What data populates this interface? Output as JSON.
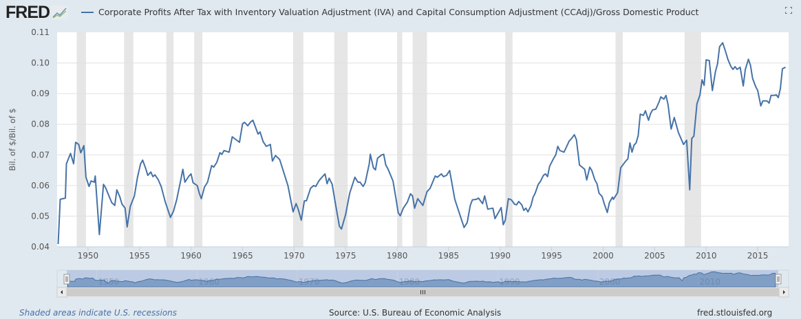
{
  "header": {
    "logo": "FRED",
    "logo_icon": "line-chart-icon",
    "fullscreen_icon": "fullscreen-icon"
  },
  "chart_data": {
    "type": "line",
    "title": "Corporate Profits After Tax with Inventory Valuation Adjustment (IVA) and Capital Consumption Adjustment (CCAdj)/Gross Domestic Product",
    "ylabel": "Bil. of $/Bil. of $",
    "xlabel": "",
    "ylim": [
      0.04,
      0.11
    ],
    "xlim": [
      1947.0,
      2018.0
    ],
    "yticks": [
      "0.04",
      "0.05",
      "0.06",
      "0.07",
      "0.08",
      "0.09",
      "0.10",
      "0.11"
    ],
    "xticks": [
      "1950",
      "1955",
      "1960",
      "1965",
      "1970",
      "1975",
      "1980",
      "1985",
      "1990",
      "1995",
      "2000",
      "2005",
      "2010",
      "2015"
    ],
    "navigator_labels": [
      "1950",
      "1960",
      "1970",
      "1980",
      "1990",
      "2000",
      "2010"
    ],
    "grid": true,
    "line_color": "#4572a7",
    "recession_color": "#e6e6e6",
    "recessions": [
      [
        1948.9,
        1949.8
      ],
      [
        1953.5,
        1954.4
      ],
      [
        1957.6,
        1958.3
      ],
      [
        1960.3,
        1961.1
      ],
      [
        1969.9,
        1970.9
      ],
      [
        1973.9,
        1975.2
      ],
      [
        1980.0,
        1980.5
      ],
      [
        1981.5,
        1982.9
      ],
      [
        1990.5,
        1991.2
      ],
      [
        2001.2,
        2001.9
      ],
      [
        2007.9,
        2009.5
      ]
    ],
    "series": [
      {
        "points": [
          [
            1947.1,
            0.0409
          ],
          [
            1947.3,
            0.0555
          ],
          [
            1947.8,
            0.0559
          ],
          [
            1947.9,
            0.0671
          ],
          [
            1948.3,
            0.0705
          ],
          [
            1948.6,
            0.0671
          ],
          [
            1948.8,
            0.0741
          ],
          [
            1949.1,
            0.0734
          ],
          [
            1949.3,
            0.0707
          ],
          [
            1949.6,
            0.073
          ],
          [
            1949.8,
            0.0627
          ],
          [
            1950.1,
            0.0597
          ],
          [
            1950.3,
            0.0615
          ],
          [
            1950.6,
            0.0611
          ],
          [
            1950.7,
            0.0631
          ],
          [
            1951.1,
            0.044
          ],
          [
            1951.5,
            0.0604
          ],
          [
            1951.7,
            0.0593
          ],
          [
            1952.3,
            0.0544
          ],
          [
            1952.6,
            0.0535
          ],
          [
            1952.8,
            0.0586
          ],
          [
            1953.1,
            0.0562
          ],
          [
            1953.3,
            0.0539
          ],
          [
            1953.6,
            0.0526
          ],
          [
            1953.8,
            0.0465
          ],
          [
            1954.1,
            0.0532
          ],
          [
            1954.5,
            0.0566
          ],
          [
            1954.8,
            0.0627
          ],
          [
            1955.1,
            0.0671
          ],
          [
            1955.3,
            0.0683
          ],
          [
            1955.6,
            0.0655
          ],
          [
            1955.8,
            0.0633
          ],
          [
            1956.1,
            0.0644
          ],
          [
            1956.3,
            0.0629
          ],
          [
            1956.5,
            0.0635
          ],
          [
            1956.8,
            0.062
          ],
          [
            1957.1,
            0.0597
          ],
          [
            1957.5,
            0.0546
          ],
          [
            1958.0,
            0.0496
          ],
          [
            1958.3,
            0.0517
          ],
          [
            1958.6,
            0.0553
          ],
          [
            1959.0,
            0.0618
          ],
          [
            1959.2,
            0.0653
          ],
          [
            1959.4,
            0.0611
          ],
          [
            1959.8,
            0.0631
          ],
          [
            1960.0,
            0.0638
          ],
          [
            1960.2,
            0.0609
          ],
          [
            1960.6,
            0.06
          ],
          [
            1960.8,
            0.0575
          ],
          [
            1961.0,
            0.0557
          ],
          [
            1961.3,
            0.0595
          ],
          [
            1961.6,
            0.0611
          ],
          [
            1962.0,
            0.0665
          ],
          [
            1962.2,
            0.066
          ],
          [
            1962.5,
            0.0676
          ],
          [
            1962.8,
            0.0707
          ],
          [
            1963.0,
            0.0702
          ],
          [
            1963.2,
            0.0714
          ],
          [
            1963.7,
            0.0709
          ],
          [
            1964.0,
            0.0759
          ],
          [
            1964.7,
            0.0741
          ],
          [
            1965.0,
            0.0802
          ],
          [
            1965.2,
            0.0806
          ],
          [
            1965.5,
            0.0795
          ],
          [
            1965.8,
            0.0808
          ],
          [
            1966.0,
            0.0813
          ],
          [
            1966.5,
            0.0768
          ],
          [
            1966.7,
            0.0775
          ],
          [
            1967.0,
            0.0743
          ],
          [
            1967.3,
            0.0728
          ],
          [
            1967.7,
            0.0734
          ],
          [
            1967.9,
            0.068
          ],
          [
            1968.2,
            0.0698
          ],
          [
            1968.6,
            0.0685
          ],
          [
            1969.4,
            0.06
          ],
          [
            1969.9,
            0.0514
          ],
          [
            1970.2,
            0.0541
          ],
          [
            1970.4,
            0.0523
          ],
          [
            1970.7,
            0.0487
          ],
          [
            1971.0,
            0.055
          ],
          [
            1971.2,
            0.055
          ],
          [
            1971.6,
            0.0591
          ],
          [
            1971.9,
            0.06
          ],
          [
            1972.1,
            0.0597
          ],
          [
            1972.4,
            0.0615
          ],
          [
            1972.7,
            0.0627
          ],
          [
            1973.0,
            0.0638
          ],
          [
            1973.2,
            0.0606
          ],
          [
            1973.4,
            0.0624
          ],
          [
            1973.7,
            0.0604
          ],
          [
            1974.0,
            0.0544
          ],
          [
            1974.4,
            0.0467
          ],
          [
            1974.6,
            0.0458
          ],
          [
            1975.0,
            0.0505
          ],
          [
            1975.4,
            0.0575
          ],
          [
            1975.9,
            0.0627
          ],
          [
            1976.2,
            0.0611
          ],
          [
            1976.4,
            0.0611
          ],
          [
            1976.7,
            0.0597
          ],
          [
            1976.9,
            0.0609
          ],
          [
            1977.3,
            0.0671
          ],
          [
            1977.4,
            0.0702
          ],
          [
            1977.7,
            0.0658
          ],
          [
            1977.9,
            0.0651
          ],
          [
            1978.1,
            0.0689
          ],
          [
            1978.5,
            0.07
          ],
          [
            1978.7,
            0.0702
          ],
          [
            1978.9,
            0.0667
          ],
          [
            1979.1,
            0.0655
          ],
          [
            1979.6,
            0.0615
          ],
          [
            1979.9,
            0.0555
          ],
          [
            1980.1,
            0.0512
          ],
          [
            1980.3,
            0.0501
          ],
          [
            1980.6,
            0.0526
          ],
          [
            1981.0,
            0.0546
          ],
          [
            1981.3,
            0.0573
          ],
          [
            1981.5,
            0.0566
          ],
          [
            1981.7,
            0.0526
          ],
          [
            1982.0,
            0.0557
          ],
          [
            1982.5,
            0.0535
          ],
          [
            1982.9,
            0.058
          ],
          [
            1983.2,
            0.0591
          ],
          [
            1983.7,
            0.0631
          ],
          [
            1983.9,
            0.0627
          ],
          [
            1984.3,
            0.0638
          ],
          [
            1984.5,
            0.0629
          ],
          [
            1984.8,
            0.0633
          ],
          [
            1985.1,
            0.0649
          ],
          [
            1985.6,
            0.0555
          ],
          [
            1986.5,
            0.0463
          ],
          [
            1986.8,
            0.0479
          ],
          [
            1987.1,
            0.0535
          ],
          [
            1987.3,
            0.0553
          ],
          [
            1987.7,
            0.0555
          ],
          [
            1987.9,
            0.0559
          ],
          [
            1988.3,
            0.0541
          ],
          [
            1988.5,
            0.0566
          ],
          [
            1988.8,
            0.0523
          ],
          [
            1989.3,
            0.0526
          ],
          [
            1989.5,
            0.0492
          ],
          [
            1990.1,
            0.0528
          ],
          [
            1990.3,
            0.0472
          ],
          [
            1990.5,
            0.0487
          ],
          [
            1990.8,
            0.0557
          ],
          [
            1991.1,
            0.0553
          ],
          [
            1991.4,
            0.0539
          ],
          [
            1991.6,
            0.0537
          ],
          [
            1991.8,
            0.0548
          ],
          [
            1992.1,
            0.0537
          ],
          [
            1992.3,
            0.0519
          ],
          [
            1992.5,
            0.0526
          ],
          [
            1992.7,
            0.0514
          ],
          [
            1993.0,
            0.0535
          ],
          [
            1993.2,
            0.0562
          ],
          [
            1993.4,
            0.0575
          ],
          [
            1993.7,
            0.0604
          ],
          [
            1993.9,
            0.0613
          ],
          [
            1994.2,
            0.0633
          ],
          [
            1994.4,
            0.0638
          ],
          [
            1994.6,
            0.0629
          ],
          [
            1994.8,
            0.0663
          ],
          [
            1995.2,
            0.0689
          ],
          [
            1995.4,
            0.07
          ],
          [
            1995.6,
            0.0728
          ],
          [
            1995.8,
            0.0714
          ],
          [
            1996.2,
            0.0709
          ],
          [
            1996.4,
            0.0723
          ],
          [
            1996.7,
            0.0745
          ],
          [
            1996.9,
            0.0752
          ],
          [
            1997.2,
            0.0766
          ],
          [
            1997.4,
            0.075
          ],
          [
            1997.7,
            0.0667
          ],
          [
            1998.2,
            0.0653
          ],
          [
            1998.4,
            0.0618
          ],
          [
            1998.7,
            0.066
          ],
          [
            1998.9,
            0.0649
          ],
          [
            1999.2,
            0.0618
          ],
          [
            1999.4,
            0.0606
          ],
          [
            1999.6,
            0.0575
          ],
          [
            1999.9,
            0.0564
          ],
          [
            2000.1,
            0.0541
          ],
          [
            2000.4,
            0.0512
          ],
          [
            2000.6,
            0.0544
          ],
          [
            2000.9,
            0.0562
          ],
          [
            2001.0,
            0.0555
          ],
          [
            2001.4,
            0.0577
          ],
          [
            2001.7,
            0.0658
          ],
          [
            2002.2,
            0.068
          ],
          [
            2002.4,
            0.0687
          ],
          [
            2002.6,
            0.0739
          ],
          [
            2002.8,
            0.0709
          ],
          [
            2003.0,
            0.0732
          ],
          [
            2003.2,
            0.0739
          ],
          [
            2003.4,
            0.0763
          ],
          [
            2003.6,
            0.0833
          ],
          [
            2003.9,
            0.0829
          ],
          [
            2004.1,
            0.0844
          ],
          [
            2004.4,
            0.0813
          ],
          [
            2004.6,
            0.0835
          ],
          [
            2004.8,
            0.0847
          ],
          [
            2005.1,
            0.0849
          ],
          [
            2005.4,
            0.0871
          ],
          [
            2005.6,
            0.0889
          ],
          [
            2005.9,
            0.0882
          ],
          [
            2006.1,
            0.0894
          ],
          [
            2006.3,
            0.0864
          ],
          [
            2006.6,
            0.0784
          ],
          [
            2006.9,
            0.0822
          ],
          [
            2007.3,
            0.0773
          ],
          [
            2007.8,
            0.0734
          ],
          [
            2008.1,
            0.0748
          ],
          [
            2008.4,
            0.0586
          ],
          [
            2008.6,
            0.0754
          ],
          [
            2008.8,
            0.0761
          ],
          [
            2009.1,
            0.0867
          ],
          [
            2009.4,
            0.0896
          ],
          [
            2009.6,
            0.0945
          ],
          [
            2009.8,
            0.0927
          ],
          [
            2010.0,
            0.101
          ],
          [
            2010.3,
            0.1008
          ],
          [
            2010.6,
            0.091
          ],
          [
            2010.9,
            0.0972
          ],
          [
            2011.1,
            0.0997
          ],
          [
            2011.3,
            0.1053
          ],
          [
            2011.6,
            0.1066
          ],
          [
            2011.9,
            0.1035
          ],
          [
            2012.1,
            0.1012
          ],
          [
            2012.4,
            0.0988
          ],
          [
            2012.6,
            0.0979
          ],
          [
            2012.8,
            0.0988
          ],
          [
            2013.0,
            0.0979
          ],
          [
            2013.3,
            0.0986
          ],
          [
            2013.6,
            0.0925
          ],
          [
            2013.8,
            0.0979
          ],
          [
            2014.1,
            0.1012
          ],
          [
            2014.3,
            0.0992
          ],
          [
            2014.5,
            0.095
          ],
          [
            2014.8,
            0.0923
          ],
          [
            2015.0,
            0.091
          ],
          [
            2015.3,
            0.086
          ],
          [
            2015.5,
            0.0876
          ],
          [
            2015.9,
            0.0876
          ],
          [
            2016.1,
            0.0869
          ],
          [
            2016.3,
            0.0894
          ],
          [
            2016.6,
            0.0894
          ],
          [
            2016.8,
            0.0896
          ],
          [
            2017.0,
            0.0887
          ],
          [
            2017.2,
            0.0916
          ],
          [
            2017.4,
            0.0981
          ],
          [
            2017.7,
            0.0986
          ]
        ]
      }
    ]
  },
  "footer": {
    "recession_note": "Shaded areas indicate U.S. recessions",
    "source": "Source: U.S. Bureau of Economic Analysis",
    "site": "fred.stlouisfed.org"
  }
}
